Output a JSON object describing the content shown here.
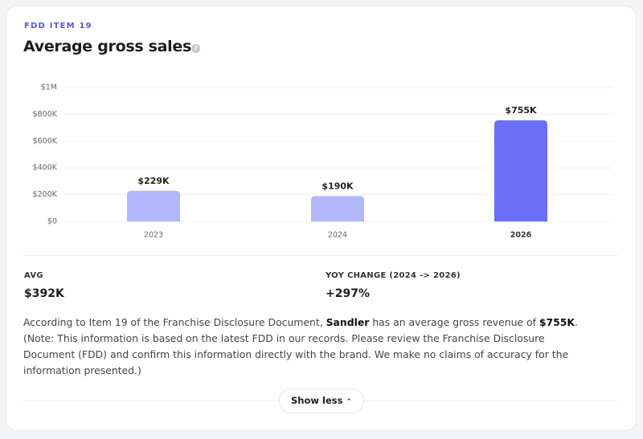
{
  "header": {
    "eyebrow": "FDD ITEM 19",
    "title": "Average gross sales"
  },
  "chart_data": {
    "type": "bar",
    "categories": [
      "2023",
      "2024",
      "2026"
    ],
    "values": [
      229000,
      190000,
      755000
    ],
    "value_labels": [
      "$229K",
      "$190K",
      "$755K"
    ],
    "colors": [
      "#b3b7fb",
      "#b3b7fb",
      "#6b6ff5"
    ],
    "ylim": [
      0,
      1000000
    ],
    "yticks": [
      {
        "value": 0,
        "label": "$0"
      },
      {
        "value": 200000,
        "label": "$200K"
      },
      {
        "value": 400000,
        "label": "$400K"
      },
      {
        "value": 600000,
        "label": "$600K"
      },
      {
        "value": 800000,
        "label": "$800K"
      },
      {
        "value": 1000000,
        "label": "$1M"
      }
    ],
    "grid": true
  },
  "stats": [
    {
      "label": "AVG",
      "value": "$392K"
    },
    {
      "label": "YOY CHANGE (2024 -> 2026)",
      "value": "+297%"
    }
  ],
  "description": [
    "According to Item 19 of the Franchise Disclosure Document, ",
    "Sandler",
    " has an average gross revenue of ",
    "$755K",
    ". (Note: This information is based on the latest FDD in our records. Please review the Franchise Disclosure Document (FDD) and confirm this information directly with the brand. We make no claims of accuracy for the information presented.)"
  ],
  "button": "Show less"
}
